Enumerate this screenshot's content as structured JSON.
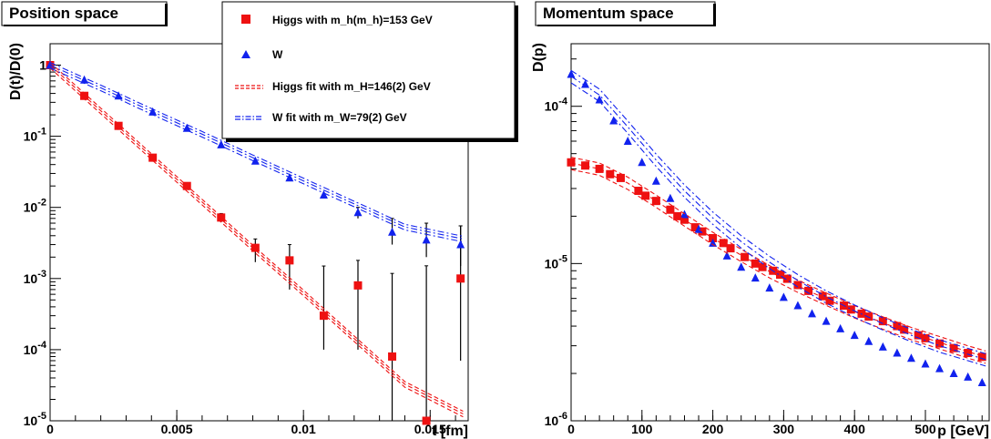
{
  "chart_data": [
    {
      "type": "scatter",
      "title": "Position space",
      "xlabel": "t [fm]",
      "ylabel": "D(t)/D(0)",
      "xlim": [
        0,
        0.0165
      ],
      "ylim": [
        1e-05,
        2
      ],
      "yscale": "log",
      "x_tick_labels": [
        "0",
        "0.005",
        "0.01",
        "0.015"
      ],
      "y_tick_labels": [
        {
          "base": "1",
          "exp": ""
        },
        {
          "base": "10",
          "exp": "-1"
        },
        {
          "base": "10",
          "exp": "-2"
        },
        {
          "base": "10",
          "exp": "-3"
        },
        {
          "base": "10",
          "exp": "-4"
        },
        {
          "base": "10",
          "exp": "-5"
        }
      ],
      "legend_position": "top-right",
      "series": [
        {
          "name": "Higgs with m_h(m_h)=153 GeV",
          "marker": "square",
          "color": "#ee1111",
          "x": [
            0,
            0.00135,
            0.0027,
            0.00405,
            0.0054,
            0.00675,
            0.0081,
            0.00945,
            0.0108,
            0.01215,
            0.0135,
            0.01485,
            0.0162
          ],
          "y": [
            1.0,
            0.37,
            0.14,
            0.05,
            0.02,
            0.0072,
            0.0027,
            0.0018,
            0.0003,
            0.0008,
            8e-05,
            1e-05,
            0.001
          ],
          "err_low": [
            0,
            0,
            0,
            0,
            0,
            0.001,
            0.001,
            0.0011,
            0.0002,
            0.0007,
            7e-05,
            9.5e-06,
            0.00093
          ],
          "err_high": [
            0,
            0,
            0,
            0,
            0,
            0.001,
            0.0009,
            0.0012,
            0.0012,
            0.001,
            0.0011,
            0.0015,
            0.0045
          ]
        },
        {
          "name": "W",
          "marker": "triangle",
          "color": "#1122ee",
          "x": [
            0,
            0.00135,
            0.0027,
            0.00405,
            0.0054,
            0.00675,
            0.0081,
            0.00945,
            0.0108,
            0.01215,
            0.0135,
            0.01485,
            0.0162
          ],
          "y": [
            1.0,
            0.62,
            0.37,
            0.22,
            0.13,
            0.076,
            0.045,
            0.026,
            0.015,
            0.0085,
            0.0045,
            0.0035,
            0.003
          ],
          "err_low": [
            0,
            0,
            0,
            0,
            0,
            0,
            0,
            0,
            0,
            0.0015,
            0.0015,
            0.0015,
            0.0015
          ],
          "err_high": [
            0,
            0,
            0,
            0,
            0,
            0,
            0,
            0,
            0,
            0.0015,
            0.0025,
            0.0025,
            0.0025
          ]
        },
        {
          "name": "Higgs fit with m_H=146(2) GeV",
          "style": "dashed",
          "color": "#ee1111",
          "x": [
            0,
            0.002,
            0.004,
            0.006,
            0.008,
            0.01,
            0.012,
            0.014,
            0.0163
          ],
          "y": [
            1.0,
            0.228,
            0.052,
            0.0119,
            0.0027,
            0.00063,
            0.000143,
            3.26e-05,
            1.25e-05
          ]
        },
        {
          "name": "W fit with m_W=79(2) GeV",
          "style": "dashdot",
          "color": "#1122ee",
          "x": [
            0,
            0.002,
            0.004,
            0.006,
            0.008,
            0.01,
            0.012,
            0.014,
            0.0163
          ],
          "y": [
            1.0,
            0.48,
            0.225,
            0.107,
            0.05,
            0.0236,
            0.0112,
            0.0053,
            0.0036
          ]
        }
      ]
    },
    {
      "type": "scatter",
      "title": "Momentum space",
      "xlabel": "p [GeV]",
      "ylabel": "D(p)",
      "xlim": [
        0,
        590
      ],
      "ylim": [
        1e-06,
        0.00025
      ],
      "yscale": "log",
      "x_tick_labels": [
        "0",
        "100",
        "200",
        "300",
        "400",
        "500"
      ],
      "y_tick_labels": [
        {
          "base": "10",
          "exp": "-4"
        },
        {
          "base": "10",
          "exp": "-5"
        },
        {
          "base": "10",
          "exp": "-6"
        }
      ],
      "series": [
        {
          "name": "Higgs",
          "marker": "square",
          "color": "#ee1111",
          "x": [
            0,
            20,
            40,
            55,
            70,
            95,
            105,
            120,
            140,
            150,
            160,
            175,
            185,
            200,
            215,
            225,
            245,
            260,
            270,
            285,
            295,
            305,
            320,
            335,
            355,
            365,
            385,
            395,
            410,
            420,
            440,
            460,
            470,
            490,
            500,
            520,
            540,
            560,
            580
          ],
          "y": [
            4.4e-05,
            4.2e-05,
            4e-05,
            3.7e-05,
            3.5e-05,
            2.9e-05,
            2.7e-05,
            2.5e-05,
            2.2e-05,
            2e-05,
            1.9e-05,
            1.7e-05,
            1.6e-05,
            1.45e-05,
            1.35e-05,
            1.25e-05,
            1.1e-05,
            1e-05,
            9.5e-06,
            9e-06,
            8.5e-06,
            8e-06,
            7.3e-06,
            6.7e-06,
            6.2e-06,
            5.8e-06,
            5.4e-06,
            5.1e-06,
            4.8e-06,
            4.6e-06,
            4.3e-06,
            4e-06,
            3.8e-06,
            3.5e-06,
            3.35e-06,
            3.1e-06,
            2.9e-06,
            2.7e-06,
            2.55e-06
          ]
        },
        {
          "name": "W",
          "marker": "triangle",
          "color": "#1122ee",
          "x": [
            0,
            20,
            40,
            60,
            80,
            100,
            120,
            140,
            160,
            180,
            200,
            220,
            240,
            260,
            280,
            300,
            320,
            340,
            360,
            380,
            400,
            420,
            440,
            460,
            480,
            500,
            520,
            540,
            560,
            580
          ],
          "y": [
            0.00016,
            0.000138,
            0.00011,
            8.1e-05,
            6e-05,
            4.4e-05,
            3.35e-05,
            2.6e-05,
            2.05e-05,
            1.65e-05,
            1.35e-05,
            1.12e-05,
            9.5e-06,
            8.1e-06,
            7e-06,
            6.1e-06,
            5.4e-06,
            4.8e-06,
            4.3e-06,
            3.85e-06,
            3.5e-06,
            3.2e-06,
            2.95e-06,
            2.7e-06,
            2.5e-06,
            2.3e-06,
            2.15e-06,
            2e-06,
            1.9e-06,
            1.75e-06
          ]
        },
        {
          "name": "Higgs fit",
          "style": "dashed",
          "color": "#ee1111",
          "x": [
            0,
            40,
            80,
            120,
            160,
            200,
            240,
            280,
            320,
            360,
            400,
            440,
            480,
            520,
            560,
            585
          ],
          "y": [
            4.35e-05,
            4e-05,
            3.25e-05,
            2.5e-05,
            1.9e-05,
            1.45e-05,
            1.13e-05,
            8.9e-06,
            7.2e-06,
            5.95e-06,
            4.95e-06,
            4.2e-06,
            3.6e-06,
            3.15e-06,
            2.75e-06,
            2.55e-06
          ]
        },
        {
          "name": "W fit",
          "style": "dashdot",
          "color": "#1122ee",
          "x": [
            0,
            40,
            80,
            120,
            160,
            200,
            240,
            280,
            320,
            360,
            400,
            440,
            480,
            520,
            560,
            585
          ],
          "y": [
            0.000155,
            0.000118,
            7.4e-05,
            4.55e-05,
            2.9e-05,
            1.95e-05,
            1.38e-05,
            1.02e-05,
            7.8e-06,
            6.15e-06,
            5e-06,
            4.15e-06,
            3.5e-06,
            3e-06,
            2.65e-06,
            2.45e-06
          ]
        }
      ]
    }
  ]
}
